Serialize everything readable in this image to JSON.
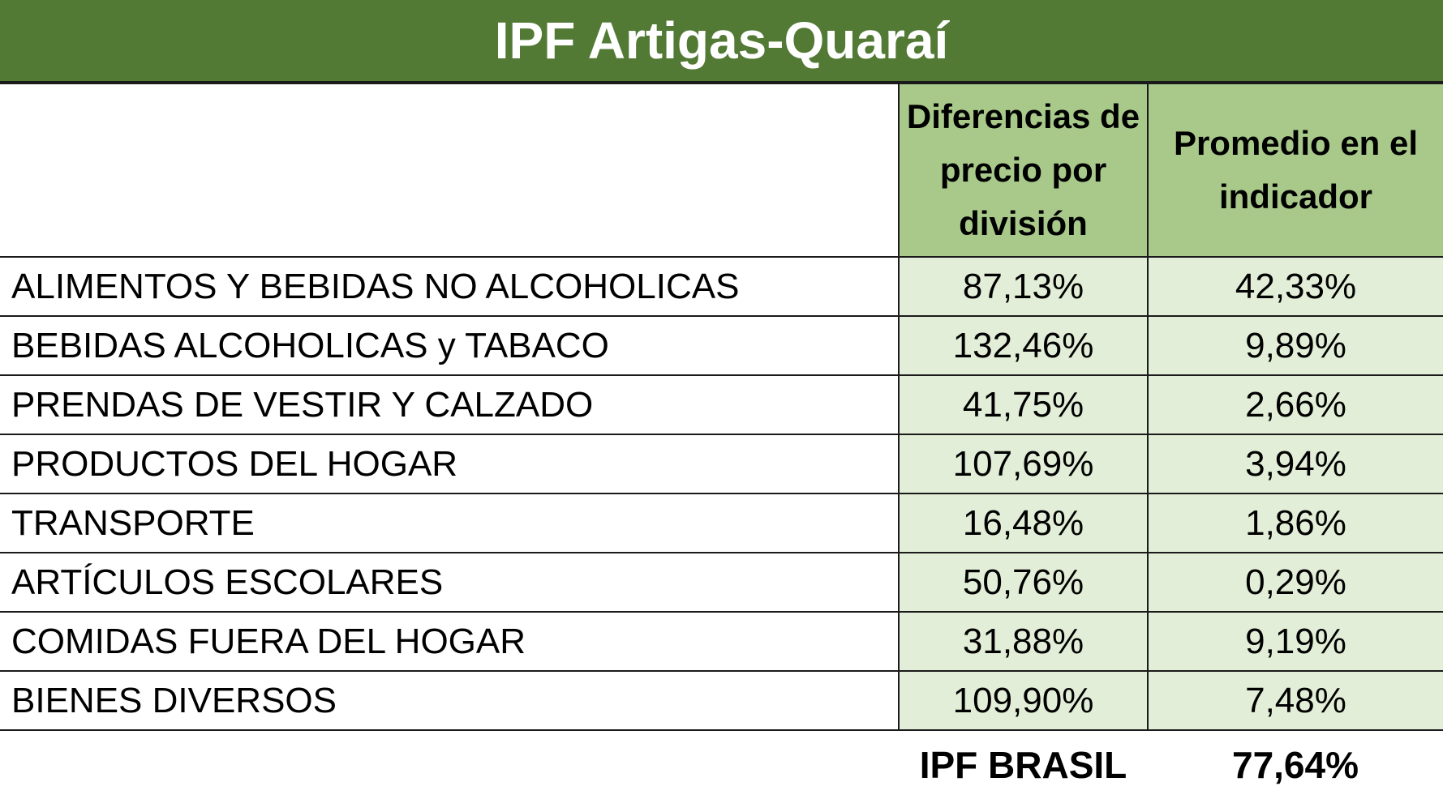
{
  "title": "IPF Artigas-Quaraí",
  "colors": {
    "title_bar": "#527a34",
    "title_text": "#ffffff",
    "header_fill": "#a8c98a",
    "value_fill": "#e2eed7",
    "grid": "#1a1a1a"
  },
  "chart_data": {
    "type": "table",
    "title": "IPF Artigas-Quaraí",
    "columns": [
      "",
      "Diferencias de precio por división",
      "Promedio en el indicador"
    ],
    "rows": [
      [
        "ALIMENTOS Y BEBIDAS NO ALCOHOLICAS",
        "87,13%",
        "42,33%"
      ],
      [
        "BEBIDAS ALCOHOLICAS y TABACO",
        "132,46%",
        "9,89%"
      ],
      [
        "PRENDAS DE VESTIR Y CALZADO",
        "41,75%",
        "2,66%"
      ],
      [
        "PRODUCTOS DEL HOGAR",
        "107,69%",
        "3,94%"
      ],
      [
        "TRANSPORTE",
        "16,48%",
        "1,86%"
      ],
      [
        "ARTÍCULOS ESCOLARES",
        "50,76%",
        "0,29%"
      ],
      [
        "COMIDAS FUERA DEL HOGAR",
        "31,88%",
        "9,19%"
      ],
      [
        "BIENES DIVERSOS",
        "109,90%",
        "7,48%"
      ]
    ],
    "total": {
      "label": "IPF BRASIL",
      "value": "77,64%"
    }
  }
}
